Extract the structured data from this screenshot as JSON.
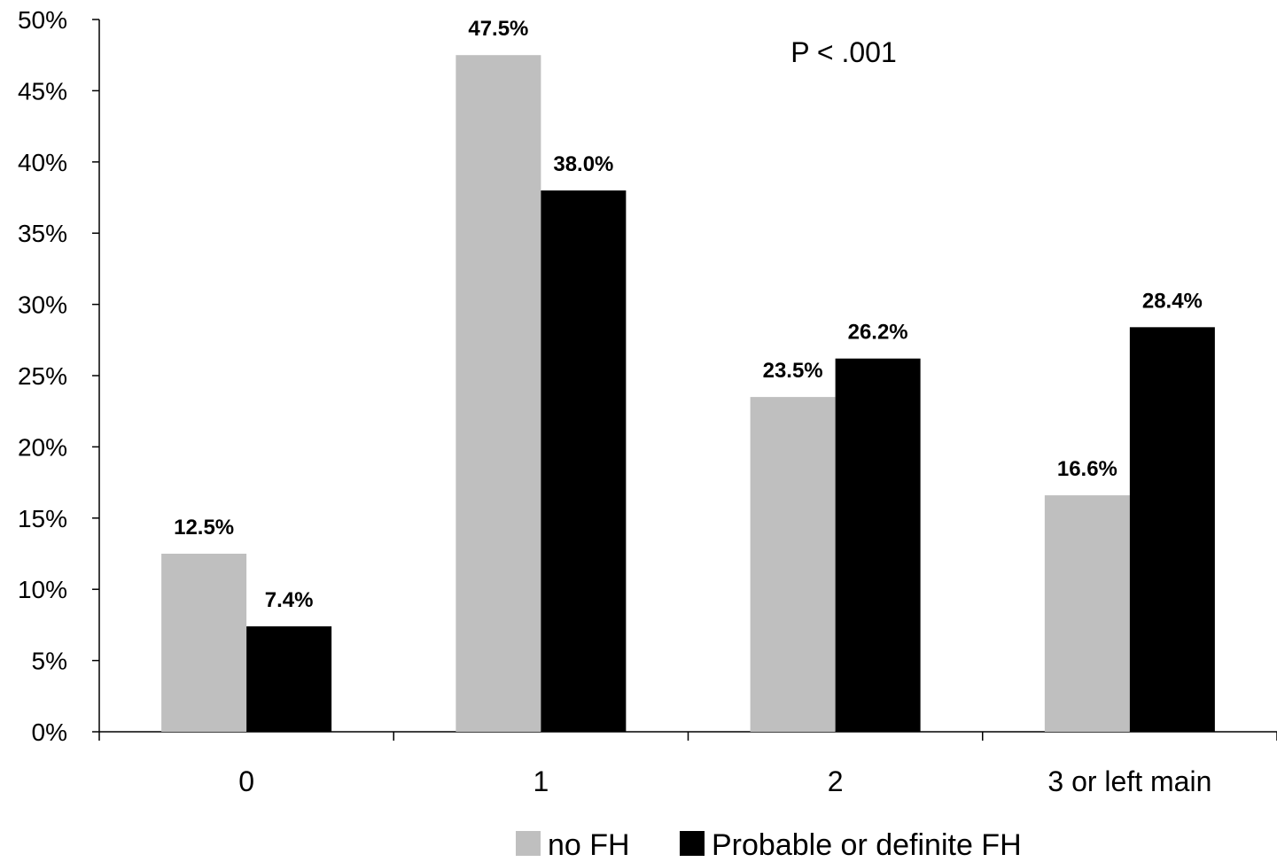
{
  "chart_data": {
    "type": "bar",
    "title": "",
    "xlabel": "",
    "ylabel": "",
    "categories": [
      "0",
      "1",
      "2",
      "3 or left main"
    ],
    "series": [
      {
        "name": "no FH",
        "values": [
          12.5,
          47.5,
          23.5,
          16.6
        ],
        "labels": [
          "12.5%",
          "47.5%",
          "23.5%",
          "16.6%"
        ],
        "color": "#bfbfbf"
      },
      {
        "name": "Probable or definite FH",
        "values": [
          7.4,
          38.0,
          26.2,
          28.4
        ],
        "labels": [
          "7.4%",
          "38.0%",
          "26.2%",
          "28.4%"
        ],
        "color": "#000000"
      }
    ],
    "ylim": [
      0,
      50
    ],
    "yticks": [
      0,
      5,
      10,
      15,
      20,
      25,
      30,
      35,
      40,
      45,
      50
    ],
    "ytick_labels": [
      "0%",
      "5%",
      "10%",
      "15%",
      "20%",
      "25%",
      "30%",
      "35%",
      "40%",
      "45%",
      "50%"
    ],
    "grid": false,
    "legend": {
      "position": "bottom"
    },
    "annotation": "P < .001"
  }
}
